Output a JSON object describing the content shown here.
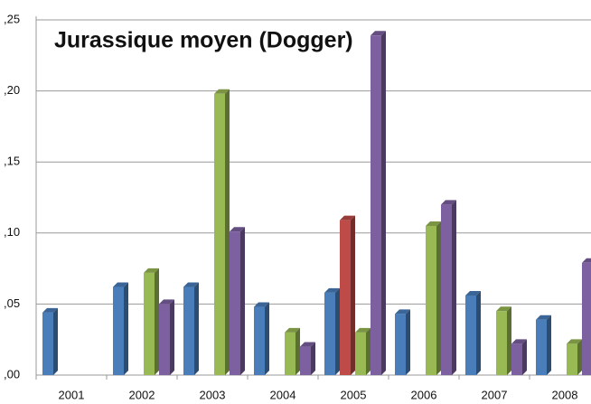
{
  "chart_data": {
    "type": "bar",
    "title": "Jurassique moyen (Dogger)",
    "categories": [
      "2001",
      "2002",
      "2003",
      "2004",
      "2005",
      "2006",
      "2007",
      "2008"
    ],
    "series": [
      {
        "color": "#4a7ebb",
        "values": [
          0.044,
          0.062,
          0.062,
          0.048,
          0.058,
          0.043,
          0.056,
          0.039
        ]
      },
      {
        "color": "#be4b48",
        "values": [
          null,
          null,
          null,
          null,
          0.109,
          null,
          null,
          null
        ]
      },
      {
        "color": "#98b954",
        "values": [
          null,
          0.072,
          0.198,
          0.03,
          0.03,
          0.105,
          0.045,
          0.022
        ]
      },
      {
        "color": "#7d60a0",
        "values": [
          null,
          0.05,
          0.101,
          0.02,
          0.239,
          0.12,
          0.022,
          0.079
        ]
      }
    ],
    "ylim": [
      0,
      0.25
    ],
    "yticks": [
      {
        "value": 0,
        "label": ",00"
      },
      {
        "value": 0.05,
        "label": ",05"
      },
      {
        "value": 0.1,
        "label": ",10"
      },
      {
        "value": 0.15,
        "label": ",15"
      },
      {
        "value": 0.2,
        "label": ",20"
      },
      {
        "value": 0.25,
        "label": ",25"
      }
    ],
    "grid": true
  }
}
